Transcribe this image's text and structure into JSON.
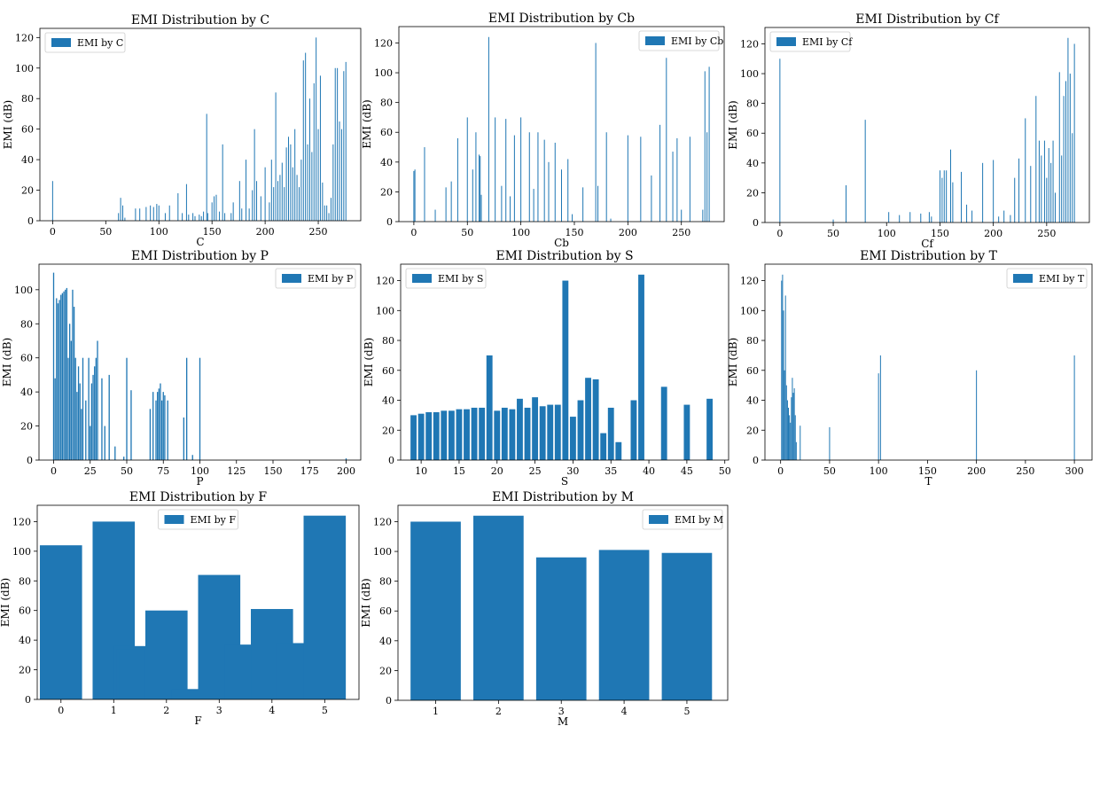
{
  "bar_color": "#1f77b4",
  "chart_data": [
    {
      "type": "bar",
      "title": "EMI Distribution by C",
      "xlabel": "C",
      "ylabel": "EMI (dB)",
      "legend": "EMI by C",
      "legend_position": "top-left",
      "xlim": [
        -12,
        290
      ],
      "ylim": [
        0,
        126
      ],
      "bar_width": 0.8,
      "xticks": [
        0,
        50,
        100,
        150,
        200,
        250
      ],
      "yticks": [
        0,
        20,
        40,
        60,
        80,
        100,
        120
      ],
      "x": [
        0,
        62,
        64,
        66,
        68,
        78,
        82,
        88,
        92,
        95,
        98,
        100,
        106,
        110,
        118,
        122,
        126,
        128,
        132,
        134,
        138,
        140,
        142,
        145,
        146,
        150,
        152,
        154,
        157,
        160,
        162,
        168,
        170,
        176,
        178,
        182,
        185,
        188,
        190,
        192,
        196,
        200,
        204,
        206,
        208,
        210,
        212,
        214,
        216,
        218,
        220,
        222,
        224,
        226,
        228,
        230,
        232,
        234,
        236,
        238,
        240,
        242,
        244,
        246,
        248,
        250,
        252,
        254,
        256,
        258,
        260,
        262,
        264,
        266,
        268,
        270,
        272,
        274,
        276
      ],
      "values": [
        26,
        5,
        15,
        10,
        2,
        8,
        8,
        9,
        10,
        9,
        11,
        10,
        5,
        10,
        18,
        5,
        24,
        4,
        5,
        3,
        4,
        3,
        6,
        70,
        5,
        12,
        16,
        17,
        6,
        50,
        5,
        5,
        12,
        26,
        8,
        40,
        8,
        20,
        60,
        26,
        16,
        35,
        12,
        40,
        22,
        84,
        26,
        30,
        38,
        22,
        48,
        55,
        50,
        35,
        60,
        30,
        22,
        40,
        105,
        110,
        50,
        80,
        45,
        90,
        120,
        60,
        95,
        25,
        10,
        10,
        5,
        15,
        50,
        100,
        100,
        65,
        60,
        98,
        104
      ]
    },
    {
      "type": "bar",
      "title": "EMI Distribution by Cb",
      "xlabel": "Cb",
      "ylabel": "EMI (dB)",
      "legend": "EMI by Cb",
      "legend_position": "top-right",
      "xlim": [
        -14,
        290
      ],
      "ylim": [
        0,
        131
      ],
      "bar_width": 0.8,
      "xticks": [
        0,
        50,
        100,
        150,
        200,
        250
      ],
      "yticks": [
        0,
        20,
        40,
        60,
        80,
        100,
        120
      ],
      "x": [
        0,
        1,
        10,
        20,
        30,
        35,
        41,
        50,
        55,
        58,
        61,
        62,
        63,
        70,
        76,
        82,
        86,
        90,
        94,
        100,
        108,
        112,
        116,
        122,
        126,
        132,
        138,
        144,
        148,
        158,
        170,
        172,
        180,
        184,
        200,
        212,
        222,
        230,
        236,
        242,
        246,
        250,
        258,
        270,
        272,
        274,
        276
      ],
      "values": [
        34,
        35,
        50,
        8,
        23,
        27,
        56,
        70,
        35,
        60,
        45,
        44,
        18,
        124,
        70,
        24,
        69,
        17,
        58,
        70,
        60,
        22,
        60,
        55,
        40,
        53,
        35,
        42,
        5,
        23,
        120,
        24,
        60,
        2,
        58,
        57,
        31,
        65,
        110,
        47,
        56,
        8,
        57,
        8,
        101,
        60,
        104
      ]
    },
    {
      "type": "bar",
      "title": "EMI Distribution by Cf",
      "xlabel": "Cf",
      "ylabel": "EMI (dB)",
      "legend": "EMI by Cf",
      "legend_position": "top-left",
      "xlim": [
        -14,
        290
      ],
      "ylim": [
        0,
        131
      ],
      "bar_width": 0.8,
      "xticks": [
        0,
        50,
        100,
        150,
        200,
        250
      ],
      "yticks": [
        0,
        20,
        40,
        60,
        80,
        100,
        120
      ],
      "x": [
        0,
        50,
        62,
        80,
        102,
        112,
        122,
        132,
        140,
        142,
        150,
        152,
        154,
        156,
        160,
        162,
        170,
        175,
        180,
        190,
        200,
        205,
        210,
        216,
        220,
        224,
        230,
        235,
        240,
        243,
        245,
        248,
        250,
        252,
        254,
        256,
        258,
        262,
        264,
        266,
        268,
        270,
        272,
        274,
        276
      ],
      "values": [
        110,
        2,
        25,
        69,
        7,
        5,
        7,
        6,
        7,
        4,
        35,
        30,
        35,
        35,
        49,
        27,
        34,
        12,
        8,
        40,
        42,
        4,
        8,
        5,
        30,
        43,
        70,
        38,
        85,
        55,
        45,
        55,
        30,
        50,
        40,
        55,
        20,
        101,
        45,
        85,
        95,
        124,
        100,
        60,
        120
      ]
    },
    {
      "type": "bar",
      "title": "EMI Distribution by P",
      "xlabel": "P",
      "ylabel": "EMI (dB)",
      "legend": "EMI by P",
      "legend_position": "top-right",
      "xlim": [
        -10,
        210
      ],
      "ylim": [
        0,
        115
      ],
      "bar_width": 0.8,
      "xticks": [
        0,
        25,
        50,
        75,
        100,
        125,
        150,
        175,
        200
      ],
      "yticks": [
        0,
        20,
        40,
        60,
        80,
        100
      ],
      "x": [
        0,
        1,
        2,
        3,
        4,
        5,
        6,
        7,
        8,
        9,
        10,
        11,
        12,
        13,
        14,
        15,
        16,
        17,
        18,
        19,
        20,
        22,
        24,
        25,
        26,
        27,
        28,
        29,
        30,
        33,
        35,
        38,
        42,
        48,
        50,
        53,
        66,
        68,
        70,
        71,
        72,
        73,
        74,
        75,
        76,
        78,
        89,
        91,
        95,
        100,
        200
      ],
      "values": [
        110,
        48,
        95,
        92,
        94,
        97,
        98,
        99,
        100,
        101,
        60,
        80,
        70,
        100,
        90,
        60,
        40,
        55,
        45,
        30,
        60,
        35,
        60,
        20,
        45,
        50,
        55,
        60,
        70,
        48,
        20,
        50,
        8,
        2,
        60,
        41,
        30,
        40,
        35,
        40,
        42,
        45,
        35,
        40,
        38,
        35,
        25,
        60,
        3,
        60,
        1
      ]
    },
    {
      "type": "bar",
      "title": "EMI Distribution by S",
      "xlabel": "S",
      "ylabel": "EMI (dB)",
      "legend": "EMI by S",
      "legend_position": "top-left",
      "xlim": [
        7.3,
        50.5
      ],
      "ylim": [
        0,
        131
      ],
      "bar_width": 0.8,
      "xticks": [
        10,
        15,
        20,
        25,
        30,
        35,
        40,
        45,
        50
      ],
      "yticks": [
        0,
        20,
        40,
        60,
        80,
        100,
        120
      ],
      "x": [
        9,
        10,
        11,
        12,
        13,
        14,
        15,
        16,
        17,
        18,
        19,
        20,
        21,
        22,
        23,
        24,
        25,
        26,
        27,
        28,
        29,
        30,
        31,
        32,
        33,
        34,
        35,
        36,
        38,
        39,
        42,
        45,
        48
      ],
      "values": [
        30,
        31,
        32,
        32,
        33,
        33,
        34,
        34,
        35,
        35,
        70,
        33,
        35,
        34,
        41,
        35,
        42,
        36,
        37,
        37,
        120,
        29,
        40,
        55,
        54,
        18,
        35,
        12,
        40,
        124,
        49,
        37,
        41
      ]
    },
    {
      "type": "bar",
      "title": "EMI Distribution by T",
      "xlabel": "T",
      "ylabel": "EMI (dB)",
      "legend": "EMI by T",
      "legend_position": "top-right",
      "xlim": [
        -16,
        318
      ],
      "ylim": [
        0,
        131
      ],
      "bar_width": 0.8,
      "xticks": [
        0,
        50,
        100,
        150,
        200,
        250,
        300
      ],
      "yticks": [
        0,
        20,
        40,
        60,
        80,
        100,
        120
      ],
      "x": [
        1,
        2,
        3,
        4,
        5,
        6,
        7,
        8,
        9,
        10,
        11,
        12,
        13,
        14,
        15,
        16,
        20,
        50,
        100,
        102,
        200,
        300
      ],
      "values": [
        120,
        124,
        100,
        60,
        110,
        50,
        40,
        35,
        30,
        25,
        42,
        55,
        45,
        48,
        30,
        12,
        23,
        22,
        58,
        70,
        60,
        70
      ]
    },
    {
      "type": "bar",
      "title": "EMI Distribution by F",
      "xlabel": "F",
      "ylabel": "EMI (dB)",
      "legend": "EMI by F",
      "legend_position": "top-center",
      "xlim": [
        -0.45,
        5.65
      ],
      "ylim": [
        0,
        131
      ],
      "bar_width": 0.8,
      "xticks": [
        0,
        1,
        2,
        3,
        4,
        5
      ],
      "yticks": [
        0,
        20,
        40,
        60,
        80,
        100,
        120
      ],
      "x": [
        0,
        1,
        1.4,
        1.45,
        1.5,
        2,
        2.5,
        3,
        3.5,
        4,
        4.5,
        5
      ],
      "values": [
        104,
        120,
        36,
        34,
        32,
        60,
        7,
        84,
        37,
        61,
        38,
        124
      ]
    },
    {
      "type": "bar",
      "title": "EMI Distribution by M",
      "xlabel": "M",
      "ylabel": "EMI (dB)",
      "legend": "EMI by M",
      "legend_position": "top-right",
      "xlim": [
        0.4,
        5.65
      ],
      "ylim": [
        0,
        131
      ],
      "bar_width": 0.8,
      "xticks": [
        1,
        2,
        3,
        4,
        5
      ],
      "yticks": [
        0,
        20,
        40,
        60,
        80,
        100,
        120
      ],
      "x": [
        1,
        2,
        3,
        4,
        5
      ],
      "values": [
        120,
        124,
        96,
        101,
        99
      ]
    }
  ]
}
